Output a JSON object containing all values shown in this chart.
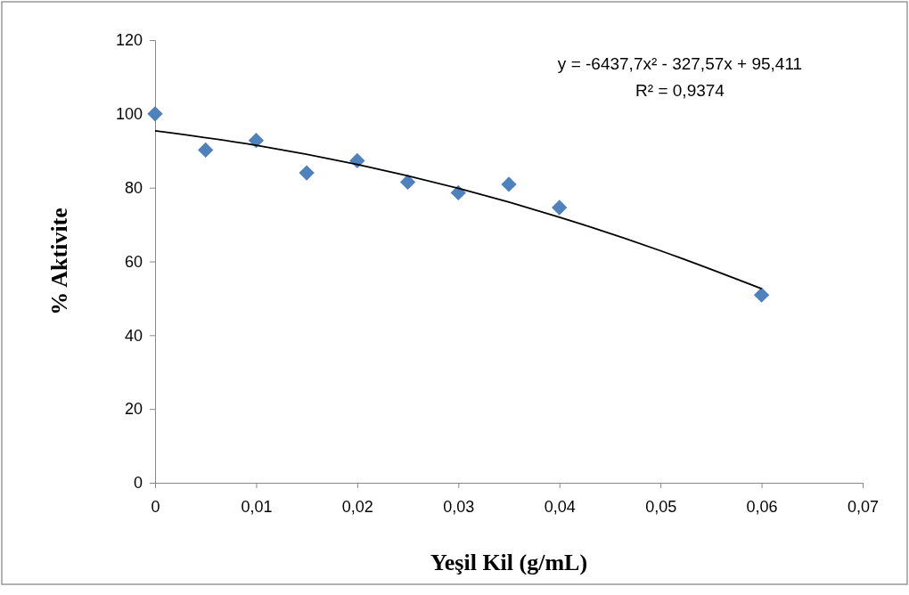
{
  "chart_data": {
    "type": "scatter",
    "xlabel": "Yeşil Kil (g/mL)",
    "ylabel": "% Aktivite",
    "xlim": [
      0,
      0.07
    ],
    "ylim": [
      0,
      120
    ],
    "xticks": [
      0,
      {
        "value": 0.01,
        "label": "0,01"
      },
      {
        "value": 0.02,
        "label": "0,02"
      },
      {
        "value": 0.03,
        "label": "0,03"
      },
      {
        "value": 0.04,
        "label": "0,04"
      },
      {
        "value": 0.05,
        "label": "0,05"
      },
      {
        "value": 0.06,
        "label": "0,06"
      },
      {
        "value": 0.07,
        "label": "0,07"
      }
    ],
    "yticks": [
      0,
      20,
      40,
      60,
      80,
      100,
      120
    ],
    "grid": false,
    "marker": "diamond",
    "annotations": [
      "y = -6437,7x² - 327,57x + 95,411",
      "R² = 0,9374"
    ],
    "series": [
      {
        "color": "#4f81bd",
        "x": [
          0,
          0.005,
          0.01,
          0.015,
          0.02,
          0.025,
          0.03,
          0.035,
          0.04,
          0.06
        ],
        "values": [
          100,
          90.2,
          92.8,
          84,
          87.3,
          81.5,
          78.6,
          80.9,
          74.6,
          50.9
        ]
      },
      {
        "type": "line",
        "color": "#000000",
        "marker": "none",
        "line_style": "solid",
        "x": [
          0,
          0.01,
          0.02,
          0.03,
          0.04,
          0.05,
          0.06
        ],
        "values": [
          95.4,
          91.5,
          86.3,
          79.8,
          72.0,
          62.9,
          52.6
        ]
      }
    ]
  }
}
